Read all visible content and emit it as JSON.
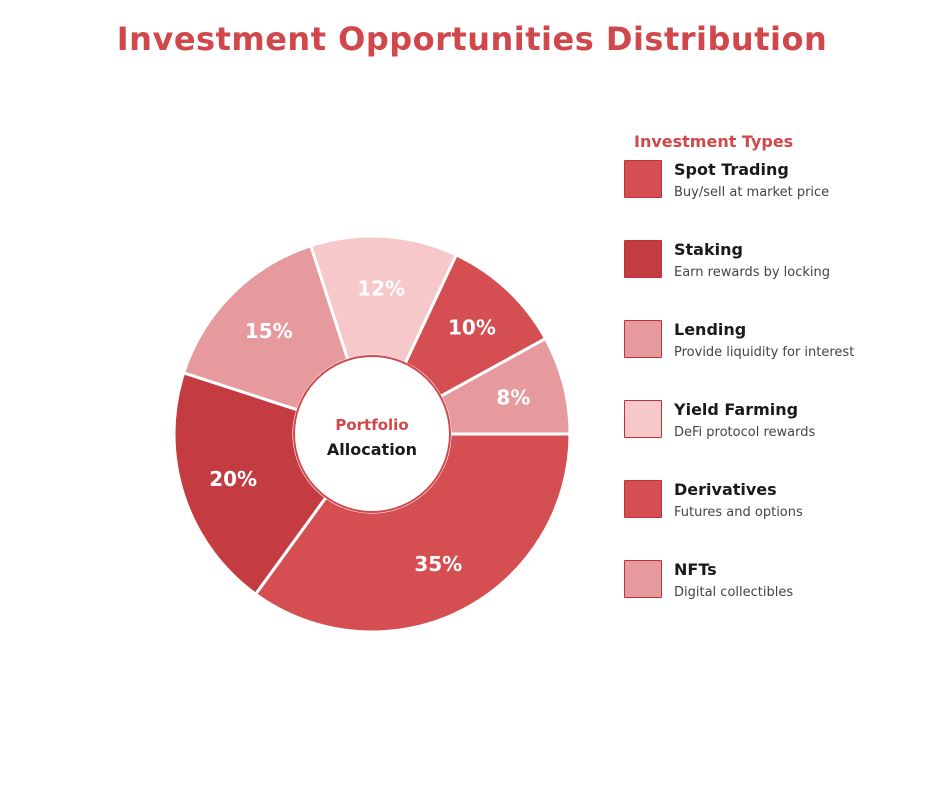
{
  "chart_data": {
    "type": "pie",
    "title": "Investment Opportunities Distribution",
    "center_label": {
      "line1": "Portfolio",
      "line2": "Allocation"
    },
    "slices": [
      {
        "label": "Spot Trading",
        "value": 35,
        "value_label": "35%",
        "color": "#d44e52"
      },
      {
        "label": "Staking",
        "value": 20,
        "value_label": "20%",
        "color": "#c43c42"
      },
      {
        "label": "Lending",
        "value": 15,
        "value_label": "15%",
        "color": "#e79a9d"
      },
      {
        "label": "Yield Farming",
        "value": 12,
        "value_label": "12%",
        "color": "#f6c8ca"
      },
      {
        "label": "Derivatives",
        "value": 10,
        "value_label": "10%",
        "color": "#d44e52"
      },
      {
        "label": "NFTs",
        "value": 8,
        "value_label": "8%",
        "color": "#e79a9d"
      }
    ],
    "legend": {
      "title": "Investment Types",
      "placement": "right",
      "items": [
        {
          "label": "Spot Trading",
          "description": "Buy/sell at market price",
          "color": "#d44e52"
        },
        {
          "label": "Staking",
          "description": "Earn rewards by locking",
          "color": "#c43c42"
        },
        {
          "label": "Lending",
          "description": "Provide liquidity for interest",
          "color": "#e79a9d"
        },
        {
          "label": "Yield Farming",
          "description": "DeFi protocol rewards",
          "color": "#f6c8ca"
        },
        {
          "label": "Derivatives",
          "description": "Futures and options",
          "color": "#d44e52"
        },
        {
          "label": "NFTs",
          "description": "Digital collectibles",
          "color": "#e79a9d"
        }
      ]
    },
    "accent_color": "#d0474c"
  }
}
